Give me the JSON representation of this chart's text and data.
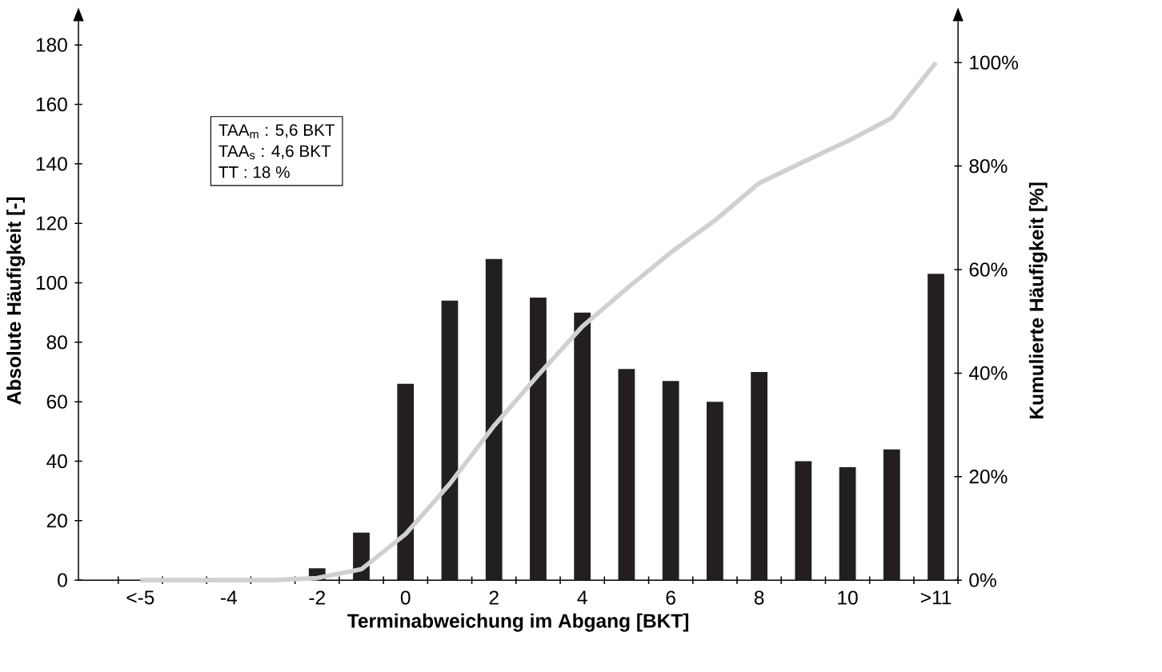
{
  "chart_data": {
    "type": "bar",
    "categories": [
      "<-5",
      null,
      "-4",
      null,
      "-2",
      null,
      "0",
      null,
      "2",
      null,
      "4",
      null,
      "6",
      null,
      "8",
      null,
      "10",
      null,
      ">11"
    ],
    "xlabel": "Terminabweichung im Abgang [BKT]",
    "ylabel": "Absolute Häufigkeit [-]",
    "y2label": "Kumulierte Häufigkeit [%]",
    "ylim": [
      0,
      188
    ],
    "yticks": [
      0,
      20,
      40,
      60,
      80,
      100,
      120,
      140,
      160,
      180
    ],
    "y2lim": [
      0,
      108
    ],
    "y2ticks": [
      {
        "value": 0,
        "label": "0%"
      },
      {
        "value": 20,
        "label": "20%"
      },
      {
        "value": 40,
        "label": "40%"
      },
      {
        "value": 60,
        "label": "60%"
      },
      {
        "value": 80,
        "label": "80%"
      },
      {
        "value": 100,
        "label": "100%"
      }
    ],
    "series": [
      {
        "color": "#231f20",
        "values": [
          0,
          0,
          0,
          0,
          4,
          16,
          66,
          94,
          108,
          95,
          90,
          71,
          67,
          60,
          70,
          40,
          38,
          44,
          103
        ]
      },
      {
        "type": "line",
        "axis": "y2",
        "color": "#d0d0d0",
        "values": [
          0,
          0,
          0,
          0,
          0.4,
          2.1,
          8.9,
          18.6,
          29.8,
          39.6,
          49.0,
          56.3,
          63.3,
          69.5,
          76.7,
          80.8,
          84.8,
          89.3,
          100
        ]
      }
    ],
    "annotations": [
      "TAA$_{m}$ : 5,6 BKT",
      "TAA$_{s}$ : 4,6 BKT",
      "TT : 18 %"
    ]
  }
}
